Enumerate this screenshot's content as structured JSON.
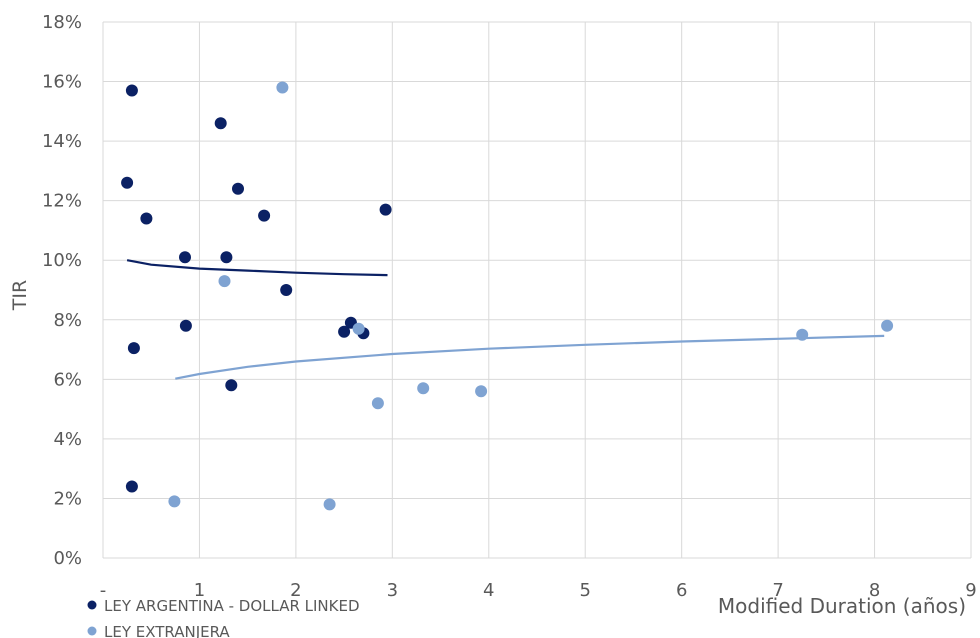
{
  "chart_data": {
    "type": "scatter",
    "xlabel": "Modified Duration (años)",
    "ylabel": "TIR",
    "xlim": [
      0,
      9
    ],
    "ylim": [
      0,
      18
    ],
    "x_ticks": [
      "-",
      "1",
      "2",
      "3",
      "4",
      "5",
      "6",
      "7",
      "8",
      "9"
    ],
    "y_ticks": [
      "0%",
      "2%",
      "4%",
      "6%",
      "8%",
      "10%",
      "12%",
      "14%",
      "16%",
      "18%"
    ],
    "grid": true,
    "legend_position": "bottom-left",
    "series": [
      {
        "name": "LEY ARGENTINA - DOLLAR LINKED",
        "color": "#0b2164",
        "points": [
          {
            "x": 0.3,
            "y": 15.7
          },
          {
            "x": 0.25,
            "y": 12.6
          },
          {
            "x": 0.45,
            "y": 11.4
          },
          {
            "x": 1.22,
            "y": 14.6
          },
          {
            "x": 1.4,
            "y": 12.4
          },
          {
            "x": 1.67,
            "y": 11.5
          },
          {
            "x": 2.93,
            "y": 11.7
          },
          {
            "x": 0.85,
            "y": 10.1
          },
          {
            "x": 1.28,
            "y": 10.1
          },
          {
            "x": 1.9,
            "y": 9.0
          },
          {
            "x": 0.86,
            "y": 7.8
          },
          {
            "x": 0.32,
            "y": 7.05
          },
          {
            "x": 2.5,
            "y": 7.6
          },
          {
            "x": 2.57,
            "y": 7.9
          },
          {
            "x": 2.7,
            "y": 7.55
          },
          {
            "x": 1.33,
            "y": 5.8
          },
          {
            "x": 0.3,
            "y": 2.4
          }
        ],
        "trend": [
          {
            "x": 0.25,
            "y": 10.0
          },
          {
            "x": 0.5,
            "y": 9.85
          },
          {
            "x": 1.0,
            "y": 9.72
          },
          {
            "x": 1.5,
            "y": 9.65
          },
          {
            "x": 2.0,
            "y": 9.58
          },
          {
            "x": 2.5,
            "y": 9.53
          },
          {
            "x": 2.95,
            "y": 9.5
          }
        ]
      },
      {
        "name": "LEY EXTRANJERA",
        "color": "#7fa3d2",
        "points": [
          {
            "x": 1.86,
            "y": 15.8
          },
          {
            "x": 1.26,
            "y": 9.3
          },
          {
            "x": 2.65,
            "y": 7.7
          },
          {
            "x": 2.85,
            "y": 5.2
          },
          {
            "x": 3.32,
            "y": 5.7
          },
          {
            "x": 3.92,
            "y": 5.6
          },
          {
            "x": 7.25,
            "y": 7.5
          },
          {
            "x": 8.13,
            "y": 7.8
          },
          {
            "x": 0.74,
            "y": 1.9
          },
          {
            "x": 2.35,
            "y": 1.8
          }
        ],
        "trend": [
          {
            "x": 0.75,
            "y": 6.02
          },
          {
            "x": 1.0,
            "y": 6.18
          },
          {
            "x": 1.5,
            "y": 6.42
          },
          {
            "x": 2.0,
            "y": 6.6
          },
          {
            "x": 3.0,
            "y": 6.85
          },
          {
            "x": 4.0,
            "y": 7.03
          },
          {
            "x": 5.0,
            "y": 7.16
          },
          {
            "x": 6.0,
            "y": 7.27
          },
          {
            "x": 7.0,
            "y": 7.36
          },
          {
            "x": 8.1,
            "y": 7.46
          }
        ]
      }
    ]
  }
}
